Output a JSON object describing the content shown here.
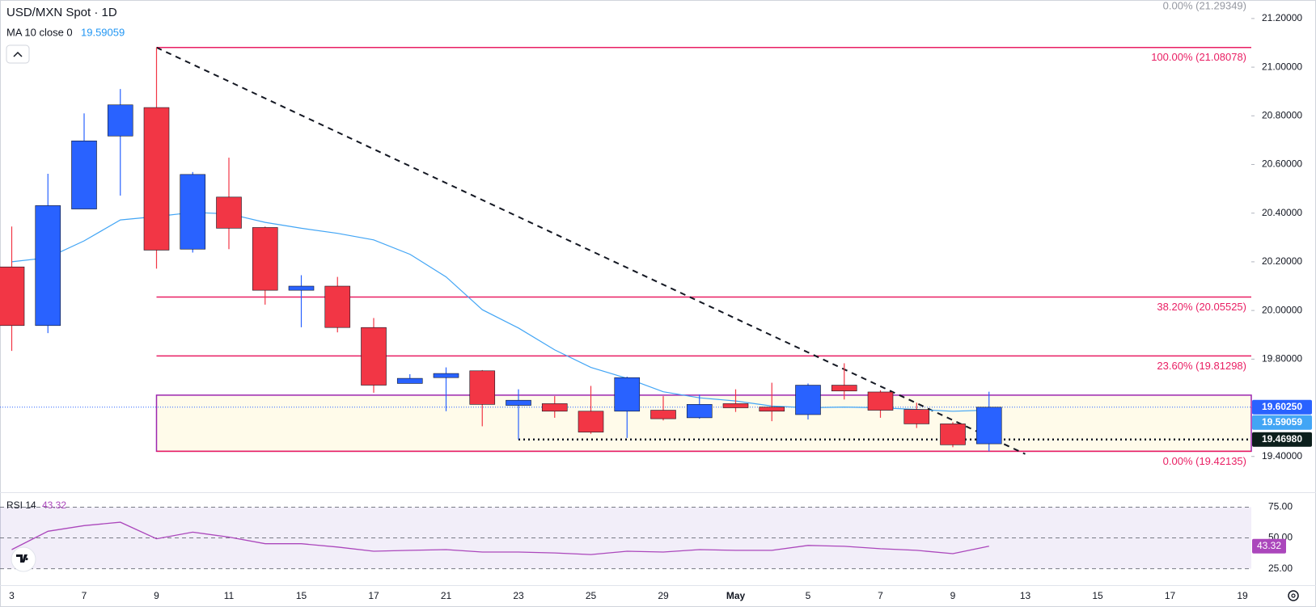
{
  "header": {
    "symbol": "USD/MXN Spot · 1D"
  },
  "chart_data": [
    {
      "type": "candlestick",
      "categories": [
        "3",
        null,
        "7",
        null,
        "9",
        null,
        "11",
        null,
        "15",
        null,
        "17",
        null,
        "21",
        null,
        "23",
        null,
        "25",
        null,
        "29",
        null,
        "May",
        null,
        "5",
        null,
        "7",
        null,
        "9",
        null,
        "13",
        null,
        "15",
        null,
        "17",
        null,
        "19"
      ],
      "open": [
        20.179,
        19.938,
        20.417,
        20.717,
        20.834,
        20.252,
        20.466,
        20.341,
        20.083,
        20.1,
        19.93,
        19.7,
        19.724,
        19.752,
        19.61,
        19.617,
        19.586,
        19.586,
        19.59,
        19.559,
        19.617,
        19.603,
        19.572,
        19.693,
        19.665,
        19.593,
        19.534,
        19.452,
        null,
        null,
        null,
        null,
        null,
        null,
        null
      ],
      "high": [
        20.345,
        20.562,
        20.81,
        20.91,
        21.08078,
        20.569,
        20.628,
        20.345,
        20.145,
        20.138,
        19.969,
        19.738,
        19.766,
        19.755,
        19.676,
        19.648,
        19.69,
        19.728,
        19.648,
        19.655,
        19.676,
        19.703,
        19.7,
        19.783,
        19.672,
        19.621,
        19.541,
        19.666,
        null,
        null,
        null,
        null,
        null,
        null,
        null
      ],
      "low": [
        19.834,
        19.907,
        20.417,
        20.472,
        20.172,
        20.238,
        20.252,
        20.024,
        19.931,
        19.91,
        19.662,
        19.7,
        19.586,
        19.524,
        19.4698,
        19.559,
        19.493,
        19.476,
        19.548,
        19.555,
        19.583,
        19.545,
        19.552,
        19.634,
        19.559,
        19.517,
        19.438,
        19.42135,
        null,
        null,
        null,
        null,
        null,
        null,
        null
      ],
      "close": [
        19.938,
        20.431,
        20.697,
        20.845,
        20.248,
        20.559,
        20.338,
        20.083,
        20.1,
        19.93,
        19.693,
        19.721,
        19.741,
        19.614,
        19.631,
        19.586,
        19.5,
        19.724,
        19.555,
        19.614,
        19.6,
        19.586,
        19.693,
        19.669,
        19.59,
        19.534,
        19.448,
        19.6025,
        null,
        null,
        null,
        null,
        null,
        null,
        null
      ],
      "up_color": "#2962ff",
      "down_color": "#f23645",
      "ma": {
        "name": "MA 10 close 0",
        "color": "#42a5f5",
        "values": [
          20.2,
          20.217,
          20.286,
          20.372,
          20.386,
          20.403,
          20.397,
          20.362,
          20.338,
          20.317,
          20.29,
          20.231,
          20.138,
          20.003,
          19.928,
          19.838,
          19.766,
          19.721,
          19.666,
          19.641,
          19.628,
          19.607,
          19.6,
          19.603,
          19.6,
          19.593,
          19.586,
          19.59059,
          null,
          null,
          null,
          null,
          null,
          null,
          null
        ]
      },
      "ylim": [
        19.253,
        21.276
      ],
      "yticks": [
        {
          "value": 19.4,
          "label": "19.40000"
        },
        {
          "value": 19.6,
          "label": "19.60000"
        },
        {
          "value": 19.8,
          "label": "19.80000"
        },
        {
          "value": 20.0,
          "label": "20.00000"
        },
        {
          "value": 20.2,
          "label": "20.20000"
        },
        {
          "value": 20.4,
          "label": "20.40000"
        },
        {
          "value": 20.6,
          "label": "20.60000"
        },
        {
          "value": 20.8,
          "label": "20.80000"
        },
        {
          "value": 21.0,
          "label": "21.00000"
        },
        {
          "value": 21.2,
          "label": "21.20000"
        }
      ],
      "fib_color": "#e91e63",
      "fib_levels": [
        {
          "value": 21.08078,
          "label": "100.00% (21.08078)"
        },
        {
          "value": 20.05525,
          "label": "38.20% (20.05525)"
        },
        {
          "value": 19.81298,
          "label": "23.60% (19.81298)"
        },
        {
          "value": 19.42135,
          "label": "0.00% (19.42135)"
        }
      ],
      "fib_top_label": "0.00% (21.29349)",
      "box": {
        "top": 19.652,
        "bottom": 19.42135,
        "color": "#9c27b0",
        "fill": "#fffbea"
      },
      "trendline": {
        "start": 21.08078,
        "end": 19.41
      },
      "last_price": {
        "value": 19.6025,
        "label": "19.60250",
        "color": "#2962ff"
      },
      "support": {
        "value": 19.4698,
        "label": "19.46980",
        "color": "#0c1f1c"
      }
    },
    {
      "type": "line",
      "series": [
        {
          "name": "RSI 14",
          "color": "#ab47bc",
          "values": [
            40.5,
            55.4,
            60,
            62.8,
            49.3,
            54.7,
            50.7,
            45.3,
            45.3,
            42.6,
            39.2,
            39.9,
            40.5,
            38.5,
            38.5,
            37.8,
            36.5,
            39.2,
            38.5,
            40.5,
            39.9,
            39.9,
            43.9,
            43.2,
            41.2,
            39.9,
            37.2,
            43.32,
            null,
            null,
            null,
            null,
            null,
            null,
            null
          ]
        }
      ],
      "ylim": [
        12.9,
        86.5
      ],
      "yticks": [
        {
          "value": 25,
          "label": "25.00"
        },
        {
          "value": 50,
          "label": "50.00"
        },
        {
          "value": 75,
          "label": "75.00"
        }
      ],
      "band_color": "#7e57c2"
    }
  ]
}
